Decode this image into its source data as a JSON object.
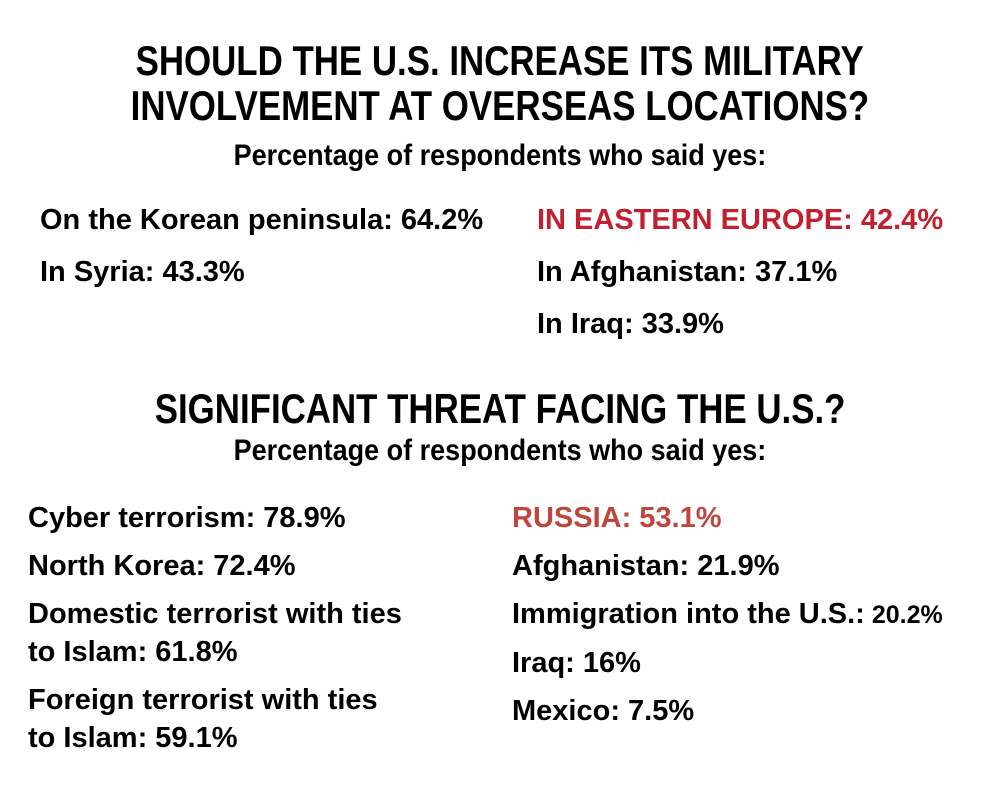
{
  "colors": {
    "background": "#FFFFFF",
    "text": "#000000",
    "section1_highlight": "#C2202F",
    "section2_highlight": "#BF463E"
  },
  "section1": {
    "title_line1": "SHOULD THE U.S. INCREASE ITS MILITARY",
    "title_line2": "INVOLVEMENT AT OVERSEAS LOCATIONS?",
    "subtitle": "Percentage of respondents who said yes:",
    "left_items": [
      {
        "text": "On the Korean peninsula: 64.2%"
      },
      {
        "text": "In Syria: 43.3%"
      }
    ],
    "right_items": [
      {
        "text": "IN EASTERN EUROPE: 42.4%"
      },
      {
        "text": "In Afghanistan: 37.1%"
      },
      {
        "text": "In Iraq: 33.9%"
      }
    ]
  },
  "section2": {
    "title": "SIGNIFICANT THREAT FACING THE U.S.?",
    "subtitle": "Percentage of respondents who said yes:",
    "left_items": [
      {
        "text": "Cyber terrorism: 78.9%"
      },
      {
        "text": "North Korea: 72.4%"
      },
      {
        "line1": "Domestic terrorist with ties",
        "line2": "to Islam: 61.8%"
      },
      {
        "line1": "Foreign terrorist with ties",
        "line2": "to Islam: 59.1%"
      }
    ],
    "right_items": [
      {
        "text": "RUSSIA: 53.1%"
      },
      {
        "text": "Afghanistan: 21.9%"
      },
      {
        "label": "Immigration into the U.S.:",
        "value": "20.2%"
      },
      {
        "text": "Iraq: 16%"
      },
      {
        "text": "Mexico: 7.5%"
      }
    ]
  },
  "chart_data": [
    {
      "type": "table",
      "title": "SHOULD THE U.S. INCREASE ITS MILITARY INVOLVEMENT AT OVERSEAS LOCATIONS?",
      "subtitle": "Percentage of respondents who said yes:",
      "categories": [
        "On the Korean peninsula",
        "In Syria",
        "In Eastern Europe",
        "In Afghanistan",
        "In Iraq"
      ],
      "values": [
        64.2,
        43.3,
        42.4,
        37.1,
        33.9
      ],
      "unit": "%",
      "highlighted_category": "In Eastern Europe",
      "layout": "two-column text list, highlighted entry in red"
    },
    {
      "type": "table",
      "title": "SIGNIFICANT THREAT FACING THE U.S.?",
      "subtitle": "Percentage of respondents who said yes:",
      "categories": [
        "Cyber terrorism",
        "North Korea",
        "Domestic terrorist with ties to Islam",
        "Foreign terrorist with ties to Islam",
        "Russia",
        "Afghanistan",
        "Immigration into the U.S.",
        "Iraq",
        "Mexico"
      ],
      "values": [
        78.9,
        72.4,
        61.8,
        59.1,
        53.1,
        21.9,
        20.2,
        16,
        7.5
      ],
      "unit": "%",
      "highlighted_category": "Russia",
      "layout": "two-column text list, highlighted entry in red"
    }
  ]
}
